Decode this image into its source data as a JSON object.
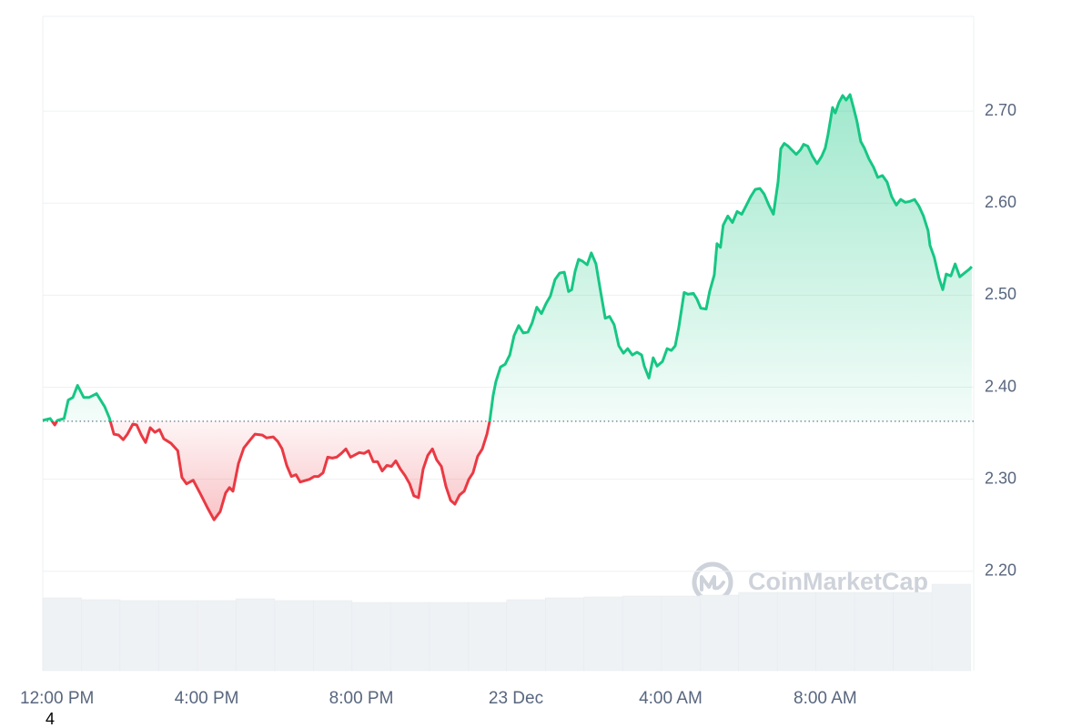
{
  "chart_data": {
    "type": "line",
    "x": [
      -0.24,
      -0.05,
      0.07,
      0.14,
      0.31,
      0.42,
      0.54,
      0.66,
      0.82,
      0.96,
      1.15,
      1.36,
      1.48,
      1.6,
      1.72,
      1.84,
      1.95,
      2.09,
      2.19,
      2.31,
      2.42,
      2.54,
      2.66,
      2.78,
      2.89,
      3.08,
      3.25,
      3.36,
      3.48,
      3.65,
      3.84,
      4.02,
      4.19,
      4.35,
      4.49,
      4.59,
      4.68,
      4.82,
      4.96,
      5.11,
      5.25,
      5.44,
      5.55,
      5.72,
      5.84,
      5.95,
      6.07,
      6.19,
      6.31,
      6.42,
      6.66,
      6.78,
      6.89,
      7.01,
      7.13,
      7.25,
      7.36,
      7.48,
      7.6,
      7.72,
      7.95,
      8.07,
      8.19,
      8.31,
      8.42,
      8.54,
      8.66,
      8.78,
      8.89,
      9.01,
      9.13,
      9.25,
      9.36,
      9.48,
      9.6,
      9.72,
      9.84,
      9.95,
      10.07,
      10.19,
      10.31,
      10.42,
      10.54,
      10.66,
      10.78,
      10.89,
      11.01,
      11.13,
      11.25,
      11.32,
      11.41,
      11.48,
      11.6,
      11.72,
      11.84,
      11.95,
      12.07,
      12.19,
      12.31,
      12.42,
      12.54,
      12.66,
      12.78,
      12.89,
      13.01,
      13.13,
      13.25,
      13.36,
      13.44,
      13.53,
      13.62,
      13.72,
      13.84,
      13.95,
      14.07,
      14.19,
      14.31,
      14.42,
      14.54,
      14.66,
      14.78,
      14.89,
      15.01,
      15.13,
      15.25,
      15.32,
      15.44,
      15.55,
      15.65,
      15.79,
      15.91,
      16.02,
      16.12,
      16.21,
      16.35,
      16.45,
      16.59,
      16.68,
      16.78,
      16.92,
      17.01,
      17.13,
      17.2,
      17.29,
      17.36,
      17.48,
      17.6,
      17.72,
      17.84,
      17.95,
      18.07,
      18.19,
      18.31,
      18.42,
      18.54,
      18.66,
      18.78,
      18.85,
      18.94,
      19.04,
      19.13,
      19.25,
      19.36,
      19.44,
      19.55,
      19.67,
      19.79,
      19.91,
      20.0,
      20.07,
      20.19,
      20.26,
      20.35,
      20.45,
      20.54,
      20.64,
      20.73,
      20.82,
      20.92,
      21.01,
      21.13,
      21.25,
      21.36,
      21.48,
      21.6,
      21.72,
      21.84,
      21.95,
      22.07,
      22.19,
      22.31,
      22.42,
      22.54,
      22.66,
      22.71,
      22.82,
      22.94,
      23.04,
      23.13,
      23.25,
      23.36,
      23.48,
      23.6,
      23.72,
      23.79
    ],
    "series": [
      {
        "values": [
          2.364,
          2.366,
          2.359,
          2.364,
          2.366,
          2.386,
          2.389,
          2.402,
          2.389,
          2.389,
          2.393,
          2.379,
          2.367,
          2.349,
          2.348,
          2.343,
          2.349,
          2.36,
          2.359,
          2.348,
          2.34,
          2.356,
          2.351,
          2.354,
          2.344,
          2.339,
          2.331,
          2.302,
          2.295,
          2.299,
          2.284,
          2.269,
          2.256,
          2.265,
          2.285,
          2.291,
          2.287,
          2.317,
          2.334,
          2.342,
          2.349,
          2.348,
          2.345,
          2.346,
          2.341,
          2.333,
          2.315,
          2.303,
          2.305,
          2.297,
          2.3,
          2.303,
          2.303,
          2.307,
          2.324,
          2.323,
          2.324,
          2.328,
          2.333,
          2.324,
          2.329,
          2.328,
          2.331,
          2.319,
          2.319,
          2.309,
          2.315,
          2.314,
          2.32,
          2.311,
          2.304,
          2.295,
          2.282,
          2.28,
          2.311,
          2.326,
          2.333,
          2.321,
          2.314,
          2.292,
          2.277,
          2.273,
          2.283,
          2.287,
          2.3,
          2.307,
          2.325,
          2.333,
          2.349,
          2.363,
          2.391,
          2.406,
          2.422,
          2.425,
          2.435,
          2.456,
          2.467,
          2.459,
          2.46,
          2.47,
          2.487,
          2.48,
          2.491,
          2.499,
          2.517,
          2.524,
          2.525,
          2.504,
          2.506,
          2.526,
          2.539,
          2.537,
          2.533,
          2.546,
          2.534,
          2.504,
          2.475,
          2.477,
          2.468,
          2.445,
          2.437,
          2.442,
          2.435,
          2.438,
          2.435,
          2.423,
          2.41,
          2.432,
          2.423,
          2.428,
          2.442,
          2.44,
          2.445,
          2.465,
          2.503,
          2.501,
          2.502,
          2.496,
          2.486,
          2.485,
          2.504,
          2.522,
          2.556,
          2.552,
          2.576,
          2.586,
          2.579,
          2.591,
          2.588,
          2.597,
          2.607,
          2.615,
          2.616,
          2.61,
          2.598,
          2.588,
          2.623,
          2.659,
          2.665,
          2.662,
          2.658,
          2.653,
          2.658,
          2.664,
          2.662,
          2.651,
          2.643,
          2.651,
          2.66,
          2.674,
          2.704,
          2.698,
          2.709,
          2.717,
          2.712,
          2.718,
          2.704,
          2.689,
          2.667,
          2.66,
          2.648,
          2.639,
          2.628,
          2.63,
          2.623,
          2.607,
          2.598,
          2.604,
          2.601,
          2.602,
          2.604,
          2.597,
          2.586,
          2.57,
          2.554,
          2.541,
          2.519,
          2.506,
          2.523,
          2.521,
          2.534,
          2.52,
          2.524,
          2.528,
          2.531
        ],
        "color_up": "#16c784",
        "color_down": "#ea3943"
      }
    ],
    "reference_value": 2.363,
    "xlim": [
      -0.24,
      23.84
    ],
    "xticks": [
      {
        "value": 0,
        "label": "12:00 PM"
      },
      {
        "value": 4,
        "label": "4:00 PM"
      },
      {
        "value": 8,
        "label": "8:00 PM"
      },
      {
        "value": 12,
        "label": "23 Dec"
      },
      {
        "value": 16,
        "label": "4:00 AM"
      },
      {
        "value": 20,
        "label": "8:00 AM"
      }
    ],
    "ylim": [
      2.092,
      2.803
    ],
    "yticks": [
      {
        "value": 2.2,
        "label": "2.20"
      },
      {
        "value": 2.3,
        "label": "2.30"
      },
      {
        "value": 2.4,
        "label": "2.40"
      },
      {
        "value": 2.5,
        "label": "2.50"
      },
      {
        "value": 2.6,
        "label": "2.60"
      },
      {
        "value": 2.7,
        "label": "2.70"
      }
    ],
    "grid": true,
    "volume": {
      "values": [
        80,
        78,
        77,
        77,
        77,
        79,
        77,
        77,
        75,
        75,
        75,
        75,
        78,
        80,
        81,
        82,
        82,
        83,
        86,
        86,
        86,
        86,
        86,
        95
      ],
      "ylim": [
        0,
        100
      ],
      "color": "#eff2f5"
    },
    "watermark": "CoinMarketCap",
    "corner_label": "4"
  }
}
